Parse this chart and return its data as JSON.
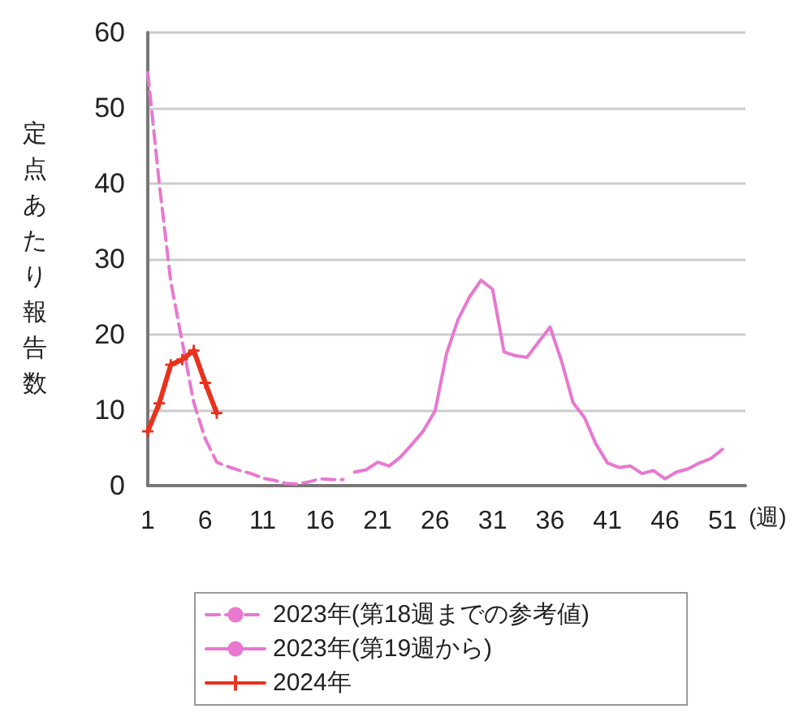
{
  "chart_data": {
    "type": "line",
    "xlabel": "(週)",
    "ylabel": "定点あたり報告数",
    "xlim": [
      1,
      53
    ],
    "xticks": [
      1,
      6,
      11,
      16,
      21,
      26,
      31,
      36,
      41,
      46,
      51
    ],
    "ylim": [
      0,
      60
    ],
    "yticks": [
      0,
      10,
      20,
      30,
      40,
      50,
      60
    ],
    "grid": "y",
    "legend": "bottom",
    "series": [
      {
        "name": "2023年(第18週までの参考値)",
        "color": "#e878d0",
        "line_style": "dashed",
        "marker": "none",
        "x": [
          1,
          2,
          3,
          4,
          5,
          6,
          7,
          8,
          9,
          10,
          11,
          12,
          13,
          14,
          15,
          16,
          17,
          18
        ],
        "values": [
          54.7,
          40,
          27,
          19,
          11,
          6.2,
          3.1,
          2.5,
          2,
          1.6,
          1,
          0.7,
          0.3,
          0.2,
          0.5,
          0.9,
          0.8,
          0.8
        ]
      },
      {
        "name": "2023年(第19週から)",
        "color": "#e878d0",
        "line_style": "solid",
        "marker": "none",
        "x": [
          19,
          20,
          21,
          22,
          23,
          24,
          25,
          26,
          27,
          28,
          29,
          30,
          31,
          32,
          33,
          34,
          35,
          36,
          37,
          38,
          39,
          40,
          41,
          42,
          43,
          44,
          45,
          46,
          47,
          48,
          49,
          50,
          51
        ],
        "values": [
          1.8,
          2.1,
          3.1,
          2.6,
          3.8,
          5.5,
          7.3,
          9.9,
          17.5,
          22,
          25,
          27.2,
          26,
          17.7,
          17.2,
          17,
          19,
          21,
          16.5,
          11,
          9,
          5.5,
          3,
          2.4,
          2.6,
          1.6,
          2,
          0.9,
          1.8,
          2.2,
          3,
          3.6,
          4.8
        ]
      },
      {
        "name": "2024年",
        "color": "#e8321e",
        "line_style": "solid",
        "marker": "cross",
        "x": [
          1,
          2,
          3,
          4,
          5,
          6,
          7
        ],
        "values": [
          7.2,
          10.9,
          16,
          16.7,
          17.9,
          13.6,
          9.6
        ]
      }
    ]
  }
}
